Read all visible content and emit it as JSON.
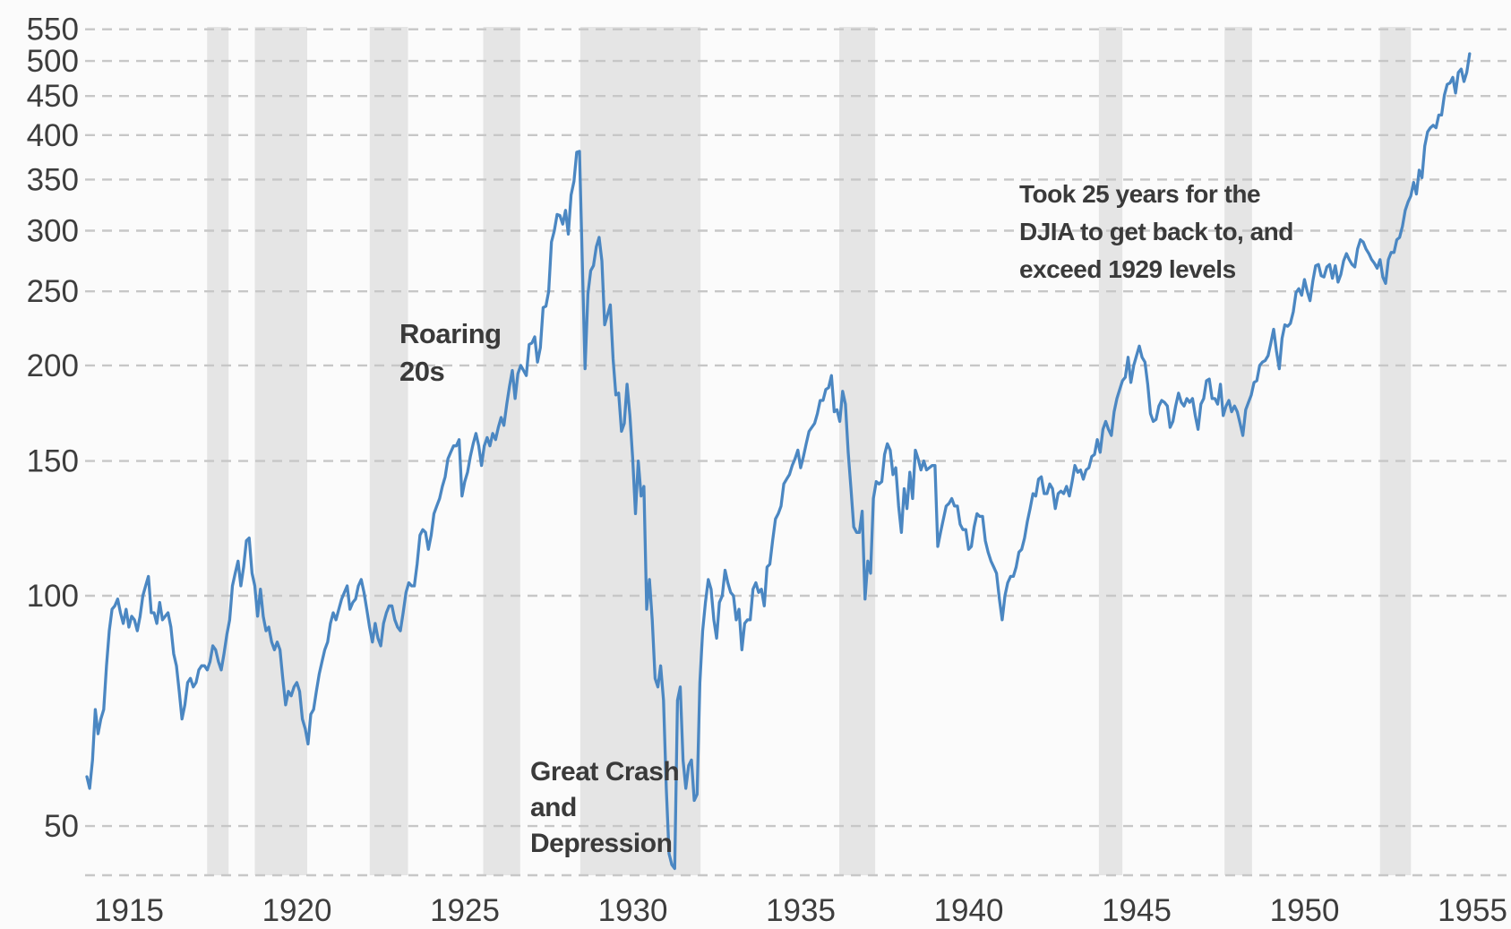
{
  "chart_data": {
    "type": "line",
    "title": "",
    "series_name": "DJIA",
    "y_scale": "log",
    "grid": "dashed-horizontal",
    "legend_position": "none",
    "y_ticks": [
      550,
      500,
      450,
      400,
      350,
      300,
      250,
      200,
      150,
      100,
      50
    ],
    "x_ticks": [
      1915,
      1920,
      1925,
      1930,
      1935,
      1940,
      1945,
      1950,
      1955
    ],
    "x_range_years": [
      1914.9,
      1956.4
    ],
    "y_range": [
      43,
      556
    ],
    "recessions": [
      [
        1918.58,
        1919.22
      ],
      [
        1920.0,
        1921.56
      ],
      [
        1923.42,
        1924.56
      ],
      [
        1926.8,
        1927.9
      ],
      [
        1929.69,
        1933.27
      ],
      [
        1937.4,
        1938.47
      ],
      [
        1945.13,
        1945.83
      ],
      [
        1948.87,
        1949.69
      ],
      [
        1953.5,
        1954.42
      ]
    ],
    "monthly_values": {
      "1915": [
        58,
        56,
        61,
        71,
        66,
        69,
        71,
        81,
        90,
        96,
        97,
        99
      ],
      "1916": [
        95,
        92,
        96,
        91,
        94,
        93,
        90,
        94,
        100,
        103,
        106,
        95
      ],
      "1917": [
        95,
        92,
        98,
        93,
        94,
        95,
        91,
        84,
        81,
        75,
        69,
        72
      ],
      "1918": [
        77,
        78,
        76,
        77,
        80,
        81,
        81,
        80,
        82,
        86,
        85,
        82
      ],
      "1919": [
        80,
        84,
        89,
        93,
        103,
        107,
        111,
        103,
        109,
        118,
        119,
        107
      ],
      "1920": [
        103,
        94,
        102,
        94,
        90,
        91,
        87,
        85,
        87,
        85,
        78,
        72
      ],
      "1921": [
        75,
        74,
        76,
        77,
        75,
        69,
        67,
        64,
        70,
        71,
        75,
        79
      ],
      "1922": [
        82,
        85,
        87,
        92,
        95,
        93,
        96,
        99,
        101,
        103,
        96,
        98
      ],
      "1923": [
        99,
        103,
        105,
        101,
        96,
        91,
        87,
        92,
        88,
        86,
        92,
        95
      ],
      "1924": [
        97,
        97,
        93,
        91,
        90,
        95,
        101,
        104,
        103,
        103,
        110,
        120
      ],
      "1925": [
        122,
        121,
        115,
        120,
        128,
        131,
        134,
        139,
        143,
        151,
        154,
        157
      ],
      "1926": [
        157,
        160,
        135,
        141,
        145,
        152,
        158,
        163,
        157,
        148,
        157,
        161
      ],
      "1927": [
        157,
        163,
        160,
        166,
        171,
        167,
        178,
        188,
        197,
        181,
        195,
        200
      ],
      "1928": [
        197,
        194,
        213,
        214,
        218,
        202,
        211,
        238,
        239,
        250,
        290,
        300
      ],
      "1929": [
        315,
        314,
        306,
        319,
        297,
        334,
        348,
        380,
        381,
        274,
        198,
        248
      ],
      "1930": [
        266,
        270,
        286,
        294,
        274,
        226,
        233,
        240,
        204,
        183,
        184,
        164
      ],
      "1931": [
        168,
        189,
        172,
        151,
        128,
        150,
        135,
        139,
        96,
        105,
        93,
        78
      ],
      "1932": [
        76,
        81,
        73,
        56,
        46,
        44.5,
        44,
        73,
        76,
        61,
        56,
        60
      ],
      "1933": [
        61,
        54,
        55,
        77,
        90,
        98,
        105,
        102,
        93,
        88,
        98,
        100
      ],
      "1934": [
        108,
        104,
        101,
        100,
        93,
        96,
        85,
        92,
        93,
        93,
        102,
        104
      ],
      "1935": [
        101,
        102,
        97,
        109,
        110,
        118,
        126,
        128,
        131,
        140,
        142,
        144
      ],
      "1936": [
        148,
        151,
        155,
        147,
        152,
        158,
        164,
        166,
        168,
        173,
        180,
        180
      ],
      "1937": [
        186,
        187,
        194,
        174,
        175,
        169,
        185,
        178,
        154,
        138,
        123,
        121
      ],
      "1938": [
        121,
        129,
        99,
        111,
        107,
        134,
        141,
        140,
        141,
        153,
        158,
        155
      ],
      "1939": [
        144,
        147,
        131,
        121,
        138,
        130,
        145,
        134,
        155,
        151,
        146,
        150
      ],
      "1940": [
        146,
        147,
        148,
        148,
        116,
        121,
        126,
        131,
        132,
        134,
        131,
        131
      ],
      "1941": [
        124,
        122,
        122,
        115,
        116,
        123,
        128,
        127,
        127,
        118,
        114,
        111
      ],
      "1942": [
        109,
        107,
        99,
        93,
        100,
        104,
        106,
        106,
        109,
        114,
        115,
        119
      ],
      "1943": [
        125,
        130,
        136,
        135,
        142,
        143,
        136,
        136,
        140,
        138,
        130,
        136
      ],
      "1944": [
        137,
        136,
        139,
        135,
        141,
        148,
        145,
        146,
        142,
        146,
        147,
        152
      ],
      "1945": [
        153,
        160,
        154,
        165,
        169,
        165,
        162,
        174,
        181,
        186,
        191,
        193
      ],
      "1946": [
        205,
        190,
        200,
        206,
        212,
        205,
        202,
        189,
        173,
        169,
        170,
        177
      ],
      "1947": [
        180,
        179,
        177,
        166,
        169,
        177,
        184,
        179,
        177,
        181,
        179,
        181
      ],
      "1948": [
        172,
        165,
        178,
        181,
        191,
        192,
        181,
        181,
        178,
        189,
        172,
        177
      ],
      "1949": [
        180,
        174,
        177,
        174,
        168,
        162,
        175,
        179,
        183,
        190,
        191,
        200
      ],
      "1950": [
        202,
        203,
        206,
        214,
        223,
        209,
        198,
        217,
        226,
        225,
        227,
        235
      ],
      "1951": [
        249,
        252,
        247,
        259,
        250,
        243,
        258,
        270,
        271,
        262,
        261,
        269
      ],
      "1952": [
        271,
        260,
        270,
        257,
        263,
        274,
        280,
        275,
        271,
        269,
        284,
        292
      ],
      "1953": [
        290,
        284,
        280,
        275,
        272,
        268,
        275,
        261,
        256,
        275,
        281,
        281
      ],
      "1954": [
        292,
        294,
        304,
        319,
        327,
        333,
        347,
        335,
        360,
        352,
        387,
        404
      ],
      "1955": [
        409,
        412,
        409,
        425,
        425,
        451,
        466,
        468,
        476,
        454,
        483,
        488
      ],
      "1956": [
        470,
        483,
        511
      ]
    },
    "annotations": [
      {
        "id": "roaring-20s",
        "lines": [
          "Roaring",
          "20s"
        ]
      },
      {
        "id": "great-crash",
        "lines": [
          "Great Crash",
          "and",
          "Depression"
        ]
      },
      {
        "id": "took-25-years",
        "lines": [
          "Took 25 years for the",
          "DJIA to get back to, and",
          "exceed 1929 levels"
        ]
      }
    ],
    "colors": {
      "line": "#4b87c2",
      "recession_band": "#e5e5e5",
      "gridline": "#c7c7c7",
      "tick_text": "#3d3d3d",
      "annotation_text": "#3a3a3a",
      "background": "#fbfbfb"
    }
  }
}
